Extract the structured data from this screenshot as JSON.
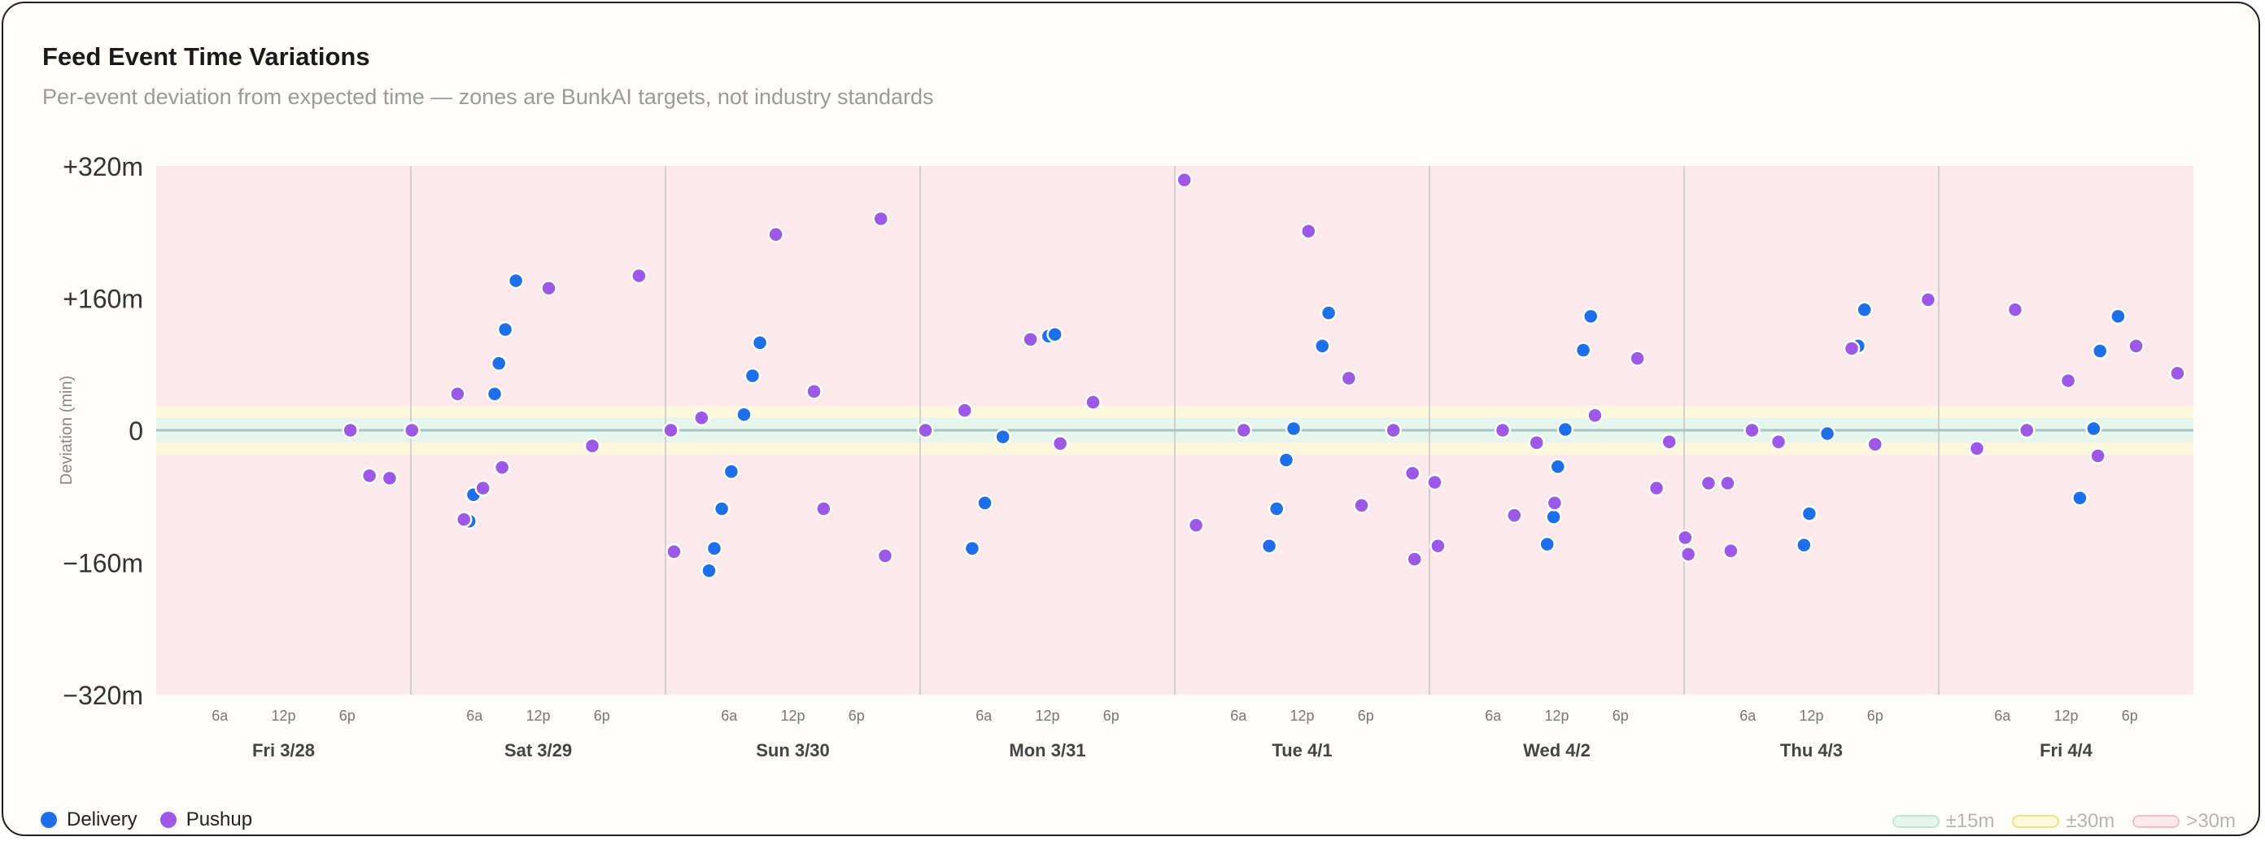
{
  "title": "Feed Event Time Variations",
  "subtitle": "Per-event deviation from expected time — zones are BunkAI targets, not industry standards",
  "colors": {
    "delivery": "#1f6feb",
    "pushup": "#9b59e6",
    "zone_15": "#e6f6ee",
    "zone_30": "#fcf7dd",
    "zone_over": "#fbe9ed",
    "zero_line": "#a8c4bf"
  },
  "legend": {
    "series": [
      {
        "label": "Delivery",
        "color": "#1f6feb"
      },
      {
        "label": "Pushup",
        "color": "#9b59e6"
      }
    ],
    "zones": [
      {
        "label": "±15m",
        "fill": "#e6f6ee",
        "stroke": "#bfe6d2"
      },
      {
        "label": "±30m",
        "fill": "#fcf7dd",
        "stroke": "#ece08a"
      },
      {
        "label": ">30m",
        "fill": "#fbe9ed",
        "stroke": "#eec0ca"
      }
    ]
  },
  "chart_data": {
    "type": "scatter",
    "title": "Feed Event Time Variations",
    "subtitle": "Per-event deviation from expected time — zones are BunkAI targets, not industry standards",
    "ylabel": "Deviation (min)",
    "ylim": [
      -320,
      320
    ],
    "yticks": [
      320,
      160,
      0,
      -160,
      -320
    ],
    "ytick_labels": [
      "+320m",
      "+160m",
      "0",
      "−160m",
      "−320m"
    ],
    "xlim_hours": [
      0,
      192
    ],
    "days": [
      "Fri 3/28",
      "Sat 3/29",
      "Sun 3/30",
      "Mon 3/31",
      "Tue 4/1",
      "Wed 4/2",
      "Thu 4/3",
      "Fri 4/4"
    ],
    "hour_ticks": [
      {
        "hour": 6,
        "label": "6a"
      },
      {
        "hour": 12,
        "label": "12p"
      },
      {
        "hour": 18,
        "label": "6p"
      }
    ],
    "zones": [
      {
        "label": "±15m",
        "range": [
          -15,
          15
        ]
      },
      {
        "label": "±30m",
        "range": [
          -30,
          30
        ]
      },
      {
        "label": ">30m",
        "range": [
          ">30",
          "<-30"
        ]
      }
    ],
    "grid": false,
    "legend_position": "bottom",
    "series": [
      {
        "name": "Delivery",
        "points": [
          [
            29.5,
            -110
          ],
          [
            29.9,
            -78
          ],
          [
            31.9,
            44
          ],
          [
            32.3,
            81
          ],
          [
            32.9,
            122
          ],
          [
            33.9,
            181
          ],
          [
            52.1,
            -170
          ],
          [
            52.6,
            -143
          ],
          [
            53.3,
            -95
          ],
          [
            54.2,
            -50
          ],
          [
            55.4,
            19
          ],
          [
            56.2,
            66
          ],
          [
            56.9,
            106
          ],
          [
            76.9,
            -143
          ],
          [
            78.1,
            -88
          ],
          [
            79.8,
            -8
          ],
          [
            84.1,
            114
          ],
          [
            84.1,
            114
          ],
          [
            84.7,
            116
          ],
          [
            104.9,
            -140
          ],
          [
            105.6,
            -95
          ],
          [
            106.5,
            -36
          ],
          [
            107.2,
            2
          ],
          [
            109.9,
            102
          ],
          [
            110.5,
            142
          ],
          [
            131.1,
            -138
          ],
          [
            131.7,
            -105
          ],
          [
            132.1,
            -44
          ],
          [
            132.8,
            1
          ],
          [
            134.5,
            97
          ],
          [
            135.2,
            138
          ],
          [
            155.3,
            -139
          ],
          [
            155.8,
            -101
          ],
          [
            157.5,
            -4
          ],
          [
            160.4,
            102
          ],
          [
            161.0,
            146
          ],
          [
            181.3,
            -82
          ],
          [
            182.6,
            2
          ],
          [
            183.2,
            96
          ],
          [
            184.9,
            138
          ]
        ]
      },
      {
        "name": "Pushup",
        "points": [
          [
            18.3,
            0
          ],
          [
            20.1,
            -55
          ],
          [
            22.0,
            -58
          ],
          [
            24.1,
            0
          ],
          [
            28.4,
            44
          ],
          [
            29.0,
            -108
          ],
          [
            30.8,
            -70
          ],
          [
            32.6,
            -45
          ],
          [
            37.0,
            172
          ],
          [
            41.1,
            -19
          ],
          [
            45.5,
            187
          ],
          [
            48.5,
            0
          ],
          [
            48.8,
            -147
          ],
          [
            51.4,
            15
          ],
          [
            58.4,
            237
          ],
          [
            62.0,
            47
          ],
          [
            62.9,
            -95
          ],
          [
            68.3,
            256
          ],
          [
            68.7,
            -152
          ],
          [
            72.5,
            0
          ],
          [
            76.2,
            24
          ],
          [
            82.4,
            110
          ],
          [
            85.2,
            -16
          ],
          [
            88.3,
            34
          ],
          [
            96.9,
            303
          ],
          [
            98.0,
            -115
          ],
          [
            102.5,
            0
          ],
          [
            108.6,
            241
          ],
          [
            112.4,
            63
          ],
          [
            113.6,
            -91
          ],
          [
            116.6,
            0
          ],
          [
            118.4,
            -52
          ],
          [
            118.6,
            -156
          ],
          [
            120.5,
            -63
          ],
          [
            120.8,
            -140
          ],
          [
            126.9,
            0
          ],
          [
            128.0,
            -103
          ],
          [
            130.1,
            -15
          ],
          [
            131.8,
            -88
          ],
          [
            135.6,
            18
          ],
          [
            139.6,
            87
          ],
          [
            141.4,
            -70
          ],
          [
            142.6,
            -14
          ],
          [
            144.1,
            -130
          ],
          [
            144.4,
            -150
          ],
          [
            146.3,
            -64
          ],
          [
            148.1,
            -64
          ],
          [
            148.4,
            -146
          ],
          [
            150.4,
            0
          ],
          [
            152.9,
            -14
          ],
          [
            159.8,
            99
          ],
          [
            162.0,
            -17
          ],
          [
            167.0,
            158
          ],
          [
            171.6,
            -22
          ],
          [
            175.2,
            146
          ],
          [
            176.3,
            0
          ],
          [
            180.2,
            60
          ],
          [
            183.0,
            -31
          ],
          [
            186.6,
            102
          ],
          [
            190.5,
            69
          ]
        ]
      }
    ]
  }
}
